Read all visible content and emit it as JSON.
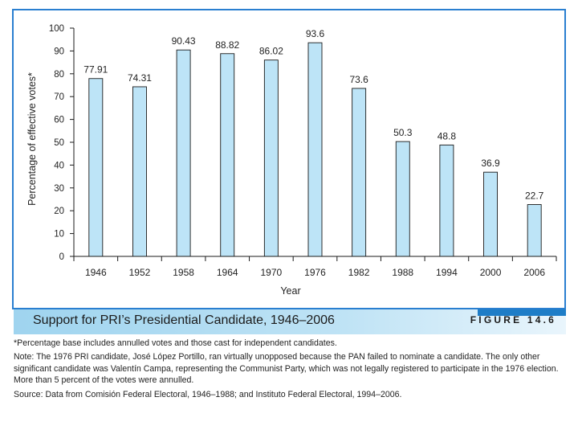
{
  "chart_data": {
    "type": "bar",
    "title": "Support for PRI’s Presidential Candidate, 1946–2006",
    "xlabel": "Year",
    "ylabel": "Percentage of effective votes*",
    "categories": [
      "1946",
      "1952",
      "1958",
      "1964",
      "1970",
      "1976",
      "1982",
      "1988",
      "1994",
      "2000",
      "2006"
    ],
    "values": [
      77.91,
      74.31,
      90.43,
      88.82,
      86.02,
      93.6,
      73.6,
      50.3,
      48.8,
      36.9,
      22.7
    ],
    "value_labels": [
      "77.91",
      "74.31",
      "90.43",
      "88.82",
      "86.02",
      "93.6",
      "73.6",
      "50.3",
      "48.8",
      "36.9",
      "22.7"
    ],
    "ylim": [
      0,
      100
    ],
    "yticks": [
      0,
      10,
      20,
      30,
      40,
      50,
      60,
      70,
      80,
      90,
      100
    ],
    "grid": false,
    "bar_color": "#bde4f7",
    "bar_edge_color": "#1a1a1a"
  },
  "caption": {
    "title": "Support for PRI’s Presidential Candidate, 1946–2006",
    "figure_label": "FIGURE 14.6",
    "band_color": "#a8d8f0",
    "accent_color": "#1e7dc7"
  },
  "notes": {
    "footnote": "*Percentage base includes annulled votes and those cast for independent candidates.",
    "note": "Note: The 1976 PRI candidate, José López Portillo, ran virtually unopposed because the PAN failed to nominate a candidate. The only other significant candidate was Valentín Campa, representing the Communist Party, which was not legally registered to participate in the 1976 election. More than 5 percent of the votes were annulled.",
    "source": "Source: Data from Comisión Federal Electoral, 1946–1988; and Instituto Federal Electoral, 1994–2006."
  }
}
